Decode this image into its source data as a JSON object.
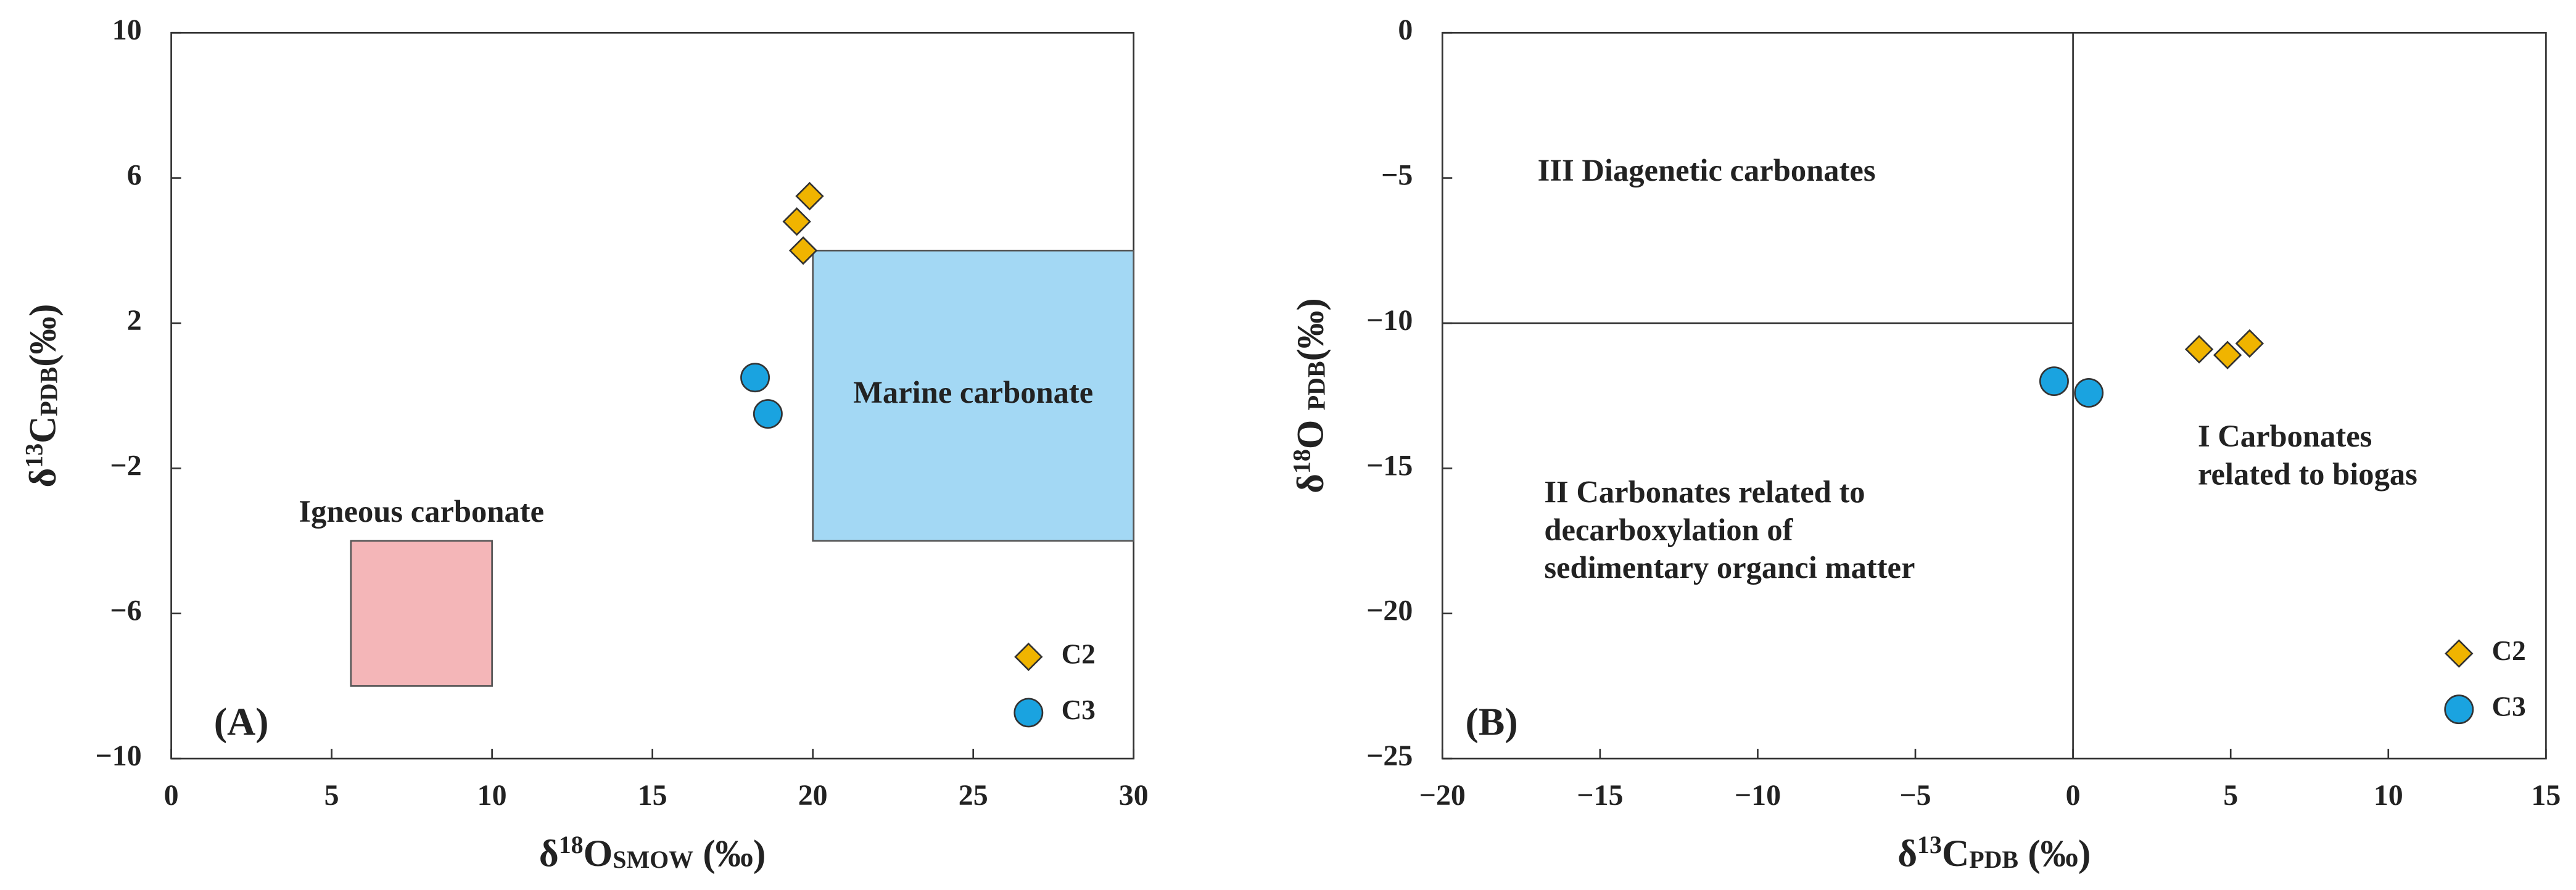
{
  "chart_data": [
    {
      "type": "scatter",
      "panel_label": "(A)",
      "x_label": [
        {
          "text": "δ",
          "style": "normal"
        },
        {
          "text": "18",
          "style": "sup"
        },
        {
          "text": "O",
          "style": "normal"
        },
        {
          "text": "SMOW",
          "style": "sub"
        },
        {
          "text": " (‰)",
          "style": "normal"
        }
      ],
      "y_label": [
        {
          "text": "δ",
          "style": "normal"
        },
        {
          "text": "13",
          "style": "sup"
        },
        {
          "text": "C",
          "style": "normal"
        },
        {
          "text": "PDB",
          "style": "sub"
        },
        {
          "text": "(‰)",
          "style": "normal"
        }
      ],
      "xlim": [
        0,
        30
      ],
      "xticks": [
        0,
        5,
        10,
        15,
        20,
        25,
        30
      ],
      "ylim": [
        -10,
        10
      ],
      "yticks": [
        {
          "value": -10,
          "label": "−10"
        },
        {
          "value": -6,
          "label": "−6"
        },
        {
          "value": -2,
          "label": "−2"
        },
        2,
        6,
        10
      ],
      "regions": [
        {
          "name": "Marine carbonate",
          "x": [
            20,
            30
          ],
          "y": [
            -4,
            4
          ],
          "color": "#a3d8f4"
        },
        {
          "name": "Igneous carbonate",
          "x": [
            5.6,
            10
          ],
          "y": [
            -8,
            -4
          ],
          "color": "#f4b6b8"
        }
      ],
      "series": [
        {
          "name": "C2",
          "marker": "diamond",
          "color": "#f0b400",
          "x": [
            19.5,
            19.9,
            19.7
          ],
          "values": [
            4.8,
            5.5,
            4.0
          ]
        },
        {
          "name": "C3",
          "marker": "circle",
          "color": "#1aa3e0",
          "x": [
            18.2,
            18.6
          ],
          "values": [
            0.5,
            -0.5
          ]
        }
      ]
    },
    {
      "type": "scatter",
      "panel_label": "(B)",
      "x_label": [
        {
          "text": "δ",
          "style": "normal"
        },
        {
          "text": "13",
          "style": "sup"
        },
        {
          "text": "C",
          "style": "normal"
        },
        {
          "text": "PDB",
          "style": "sub"
        },
        {
          "text": " (‰)",
          "style": "normal"
        }
      ],
      "y_label": [
        {
          "text": "δ",
          "style": "normal"
        },
        {
          "text": "18",
          "style": "sup"
        },
        {
          "text": "O ",
          "style": "normal"
        },
        {
          "text": "PDB",
          "style": "sub"
        },
        {
          "text": "(‰)",
          "style": "normal"
        }
      ],
      "xlim": [
        -20,
        15
      ],
      "xticks": [
        {
          "value": -20,
          "label": "−20"
        },
        {
          "value": -15,
          "label": "−15"
        },
        {
          "value": -10,
          "label": "−10"
        },
        {
          "value": -5,
          "label": "−5"
        },
        0,
        5,
        10,
        15
      ],
      "ylim": [
        -25,
        0
      ],
      "yticks": [
        {
          "value": -25,
          "label": "−25"
        },
        {
          "value": -20,
          "label": "−20"
        },
        {
          "value": -15,
          "label": "−15"
        },
        {
          "value": -10,
          "label": "−10"
        },
        {
          "value": -5,
          "label": "−5"
        },
        0
      ],
      "lines": [
        {
          "x": [
            0,
            0
          ],
          "y": [
            0,
            -25
          ]
        },
        {
          "x": [
            -20,
            0
          ],
          "y": [
            -10,
            -10
          ]
        }
      ],
      "annotations": [
        [
          "III Diagenetic carbonates"
        ],
        [
          "II Carbonates related to",
          "decarboxylation of",
          "sedimentary organci matter"
        ],
        [
          "I Carbonates",
          "related to biogas"
        ]
      ],
      "series": [
        {
          "name": "C2",
          "marker": "diamond",
          "color": "#f0b400",
          "x": [
            4.0,
            4.9,
            5.6
          ],
          "values": [
            -10.9,
            -11.1,
            -10.7
          ]
        },
        {
          "name": "C3",
          "marker": "circle",
          "color": "#1aa3e0",
          "x": [
            -0.6,
            0.5
          ],
          "values": [
            -12.0,
            -12.4
          ]
        }
      ]
    }
  ]
}
